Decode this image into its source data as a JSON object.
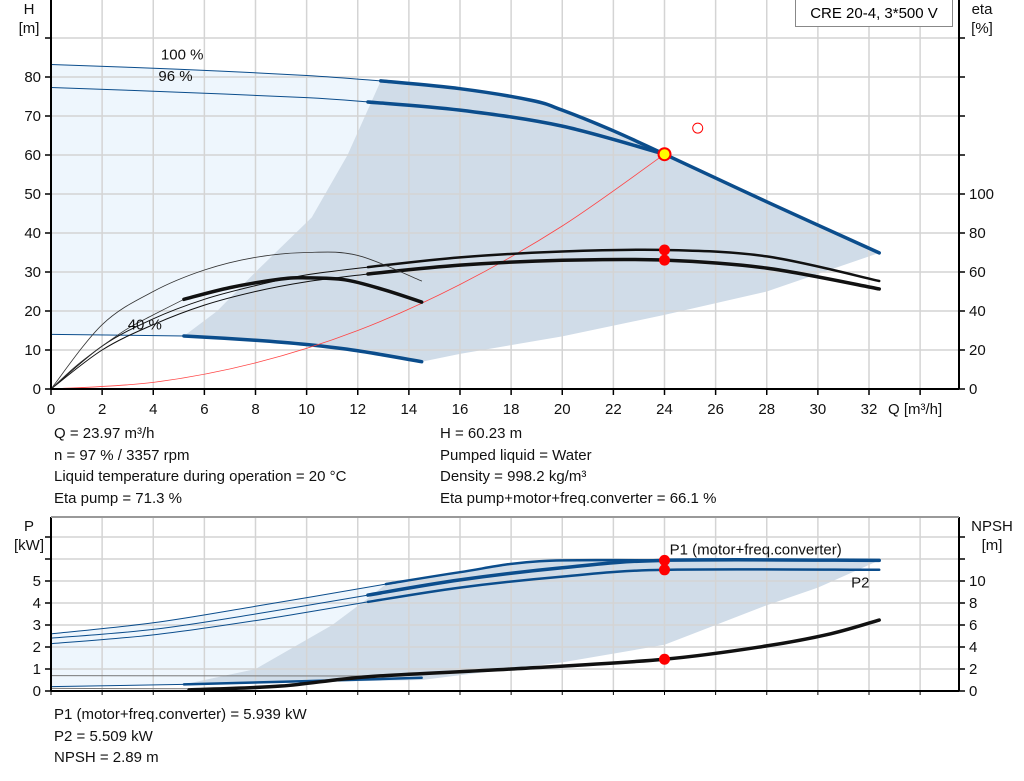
{
  "legend_box": "CRE 20-4, 3*500 V",
  "colors": {
    "curve_blue": "#0b4d8c",
    "light_region": "#eef6fd",
    "dark_region": "#d0dce8",
    "grid": "#d4d4d4",
    "system_curve": "#ff4444",
    "operating_point_fill": "#ffff00",
    "operating_point_marker": "#ff0000",
    "label_blue": "#1a5a96"
  },
  "top_info": {
    "left": [
      "Q = 23.97 m³/h",
      "n = 97 % / 3357 rpm",
      "Liquid temperature during operation = 20 °C",
      "Eta pump = 71.3 %"
    ],
    "right": [
      "H = 60.23 m",
      "Pumped liquid = Water",
      "Density = 998.2 kg/m³",
      "Eta pump+motor+freq.converter = 66.1 %"
    ]
  },
  "bottom_info": [
    "P1 (motor+freq.converter) = 5.939 kW",
    "P2 = 5.509 kW",
    "NPSH = 2.89 m"
  ],
  "chart_data": [
    {
      "type": "line",
      "ylabel": "H\n[m]",
      "y2label": "eta\n[%]",
      "xlabel": "Q [m³/h]",
      "xlim": [
        0,
        35.5
      ],
      "ylim": [
        0,
        100
      ],
      "y2lim": [
        0,
        200
      ],
      "xticks": [
        0,
        2,
        4,
        6,
        8,
        10,
        12,
        14,
        16,
        18,
        20,
        22,
        24,
        26,
        28,
        30,
        32
      ],
      "yticks": [
        0,
        10,
        20,
        30,
        40,
        50,
        60,
        70,
        80
      ],
      "y2ticks": [
        0,
        20,
        40,
        60,
        80,
        100
      ],
      "grid": true,
      "annotations": [
        {
          "text": "100 %",
          "x": 4.3,
          "y": 84.5
        },
        {
          "text": "96 %",
          "x": 4.2,
          "y": 79
        },
        {
          "text": "40 %",
          "x": 3,
          "y": 15.3
        }
      ],
      "regions": [
        {
          "name": "light",
          "axis": "H",
          "points": [
            [
              0,
              83.2
            ],
            [
              5,
              82
            ],
            [
              10,
              80.4
            ],
            [
              12.9,
              79
            ],
            [
              11.6,
              60
            ],
            [
              10.2,
              44
            ],
            [
              8,
              30
            ],
            [
              6.5,
              20
            ],
            [
              5.2,
              13.6
            ],
            [
              0,
              14
            ]
          ]
        },
        {
          "name": "dark",
          "axis": "H",
          "points": [
            [
              5.2,
              13.6
            ],
            [
              6.5,
              20
            ],
            [
              8,
              30
            ],
            [
              10.2,
              44
            ],
            [
              11.6,
              60
            ],
            [
              12.9,
              79
            ],
            [
              16,
              77
            ],
            [
              18.8,
              74
            ],
            [
              20,
              71.5
            ],
            [
              24,
              60.2
            ],
            [
              28,
              48
            ],
            [
              32.4,
              34.9
            ],
            [
              28,
              25
            ],
            [
              24,
              19
            ],
            [
              20,
              13.5
            ],
            [
              16,
              9
            ],
            [
              14.5,
              7
            ],
            [
              12,
              9.8
            ],
            [
              10,
              11.4
            ],
            [
              8,
              12.5
            ]
          ]
        }
      ],
      "series": [
        {
          "axis": "H",
          "weight": "thin",
          "color": "#0b4d8c",
          "points": [
            [
              0,
              83.2
            ],
            [
              5,
              82
            ],
            [
              10,
              80.4
            ],
            [
              12.9,
              79
            ]
          ]
        },
        {
          "axis": "H",
          "weight": "thick",
          "color": "#0b4d8c",
          "points": [
            [
              12.9,
              79
            ],
            [
              16,
              77
            ],
            [
              18.8,
              74
            ],
            [
              20,
              71.5
            ],
            [
              22,
              66.2
            ],
            [
              24,
              60.2
            ],
            [
              28,
              48
            ],
            [
              32.4,
              34.9
            ]
          ]
        },
        {
          "axis": "H",
          "weight": "thin",
          "color": "#0b4d8c",
          "points": [
            [
              0,
              77.3
            ],
            [
              5,
              76.1
            ],
            [
              10,
              74.7
            ],
            [
              12.4,
              73.6
            ]
          ]
        },
        {
          "axis": "H",
          "weight": "thick",
          "color": "#0b4d8c",
          "points": [
            [
              12.4,
              73.6
            ],
            [
              16,
              71.5
            ],
            [
              20,
              67.4
            ],
            [
              24,
              60.2
            ]
          ]
        },
        {
          "axis": "H",
          "weight": "thin",
          "color": "#0b4d8c",
          "points": [
            [
              0,
              14
            ],
            [
              5.2,
              13.6
            ]
          ]
        },
        {
          "axis": "H",
          "weight": "thick",
          "color": "#0b4d8c",
          "points": [
            [
              5.2,
              13.6
            ],
            [
              8,
              12.5
            ],
            [
              10,
              11.4
            ],
            [
              12,
              9.8
            ],
            [
              14.5,
              7
            ]
          ]
        },
        {
          "axis": "H",
          "weight": "hair",
          "color": "#ff4444",
          "points": [
            [
              0,
              0
            ],
            [
              4,
              1.7
            ],
            [
              8,
              6.7
            ],
            [
              12,
              15
            ],
            [
              16,
              26.8
            ],
            [
              20,
              41.8
            ],
            [
              24,
              60.2
            ]
          ]
        },
        {
          "axis": "eta",
          "weight": "thin",
          "color": "#111111",
          "points": [
            [
              0,
              0
            ],
            [
              2,
              22
            ],
            [
              4,
              36
            ],
            [
              6,
              46
            ],
            [
              8,
              53
            ],
            [
              10,
              58.5
            ],
            [
              12.4,
              62.5
            ]
          ]
        },
        {
          "axis": "eta",
          "weight": "medium",
          "color": "#111111",
          "points": [
            [
              12.4,
              62.5
            ],
            [
              16,
              67.5
            ],
            [
              20,
              70.5
            ],
            [
              24,
              71.3
            ],
            [
              28,
              68
            ],
            [
              32.4,
              55.4
            ]
          ]
        },
        {
          "axis": "eta",
          "weight": "thin",
          "color": "#111111",
          "points": [
            [
              0,
              0
            ],
            [
              2,
              20
            ],
            [
              4,
              33
            ],
            [
              6,
              43
            ],
            [
              8,
              50
            ],
            [
              10,
              55
            ],
            [
              12.4,
              59
            ]
          ]
        },
        {
          "axis": "eta",
          "weight": "thick",
          "color": "#111111",
          "points": [
            [
              12.4,
              59
            ],
            [
              16,
              63.5
            ],
            [
              20,
              66
            ],
            [
              24,
              66.1
            ],
            [
              28,
              62
            ],
            [
              32.4,
              51.3
            ]
          ]
        },
        {
          "axis": "eta",
          "weight": "hair",
          "color": "#333333",
          "points": [
            [
              0,
              0
            ],
            [
              2,
              33
            ],
            [
              4,
              50
            ],
            [
              6,
              61
            ],
            [
              8,
              67.5
            ],
            [
              10,
              70
            ],
            [
              12,
              68.5
            ],
            [
              14.5,
              55.4
            ]
          ]
        },
        {
          "axis": "eta",
          "weight": "hair",
          "color": "#333333",
          "points": [
            [
              0,
              0
            ],
            [
              1,
              12
            ],
            [
              2,
              22
            ],
            [
              3,
              31
            ],
            [
              4,
              38
            ],
            [
              5.2,
              46
            ]
          ]
        },
        {
          "axis": "eta",
          "weight": "thick",
          "color": "#111111",
          "points": [
            [
              5.2,
              46
            ],
            [
              7,
              52
            ],
            [
              9,
              56.4
            ],
            [
              10,
              57
            ],
            [
              11.5,
              56
            ],
            [
              13,
              51
            ],
            [
              14.5,
              44.6
            ]
          ]
        }
      ],
      "markers": [
        {
          "axis": "H",
          "x": 24,
          "y": 60.2,
          "kind": "operating-point"
        },
        {
          "axis": "H",
          "x": 25.3,
          "y": 66.9,
          "kind": "hollow"
        },
        {
          "axis": "eta",
          "x": 24,
          "y": 71.3,
          "kind": "dot"
        },
        {
          "axis": "eta",
          "x": 24,
          "y": 66.1,
          "kind": "dot"
        }
      ]
    },
    {
      "type": "line",
      "ylabel": "P\n[kW]",
      "y2label": "NPSH\n[m]",
      "xlim": [
        0,
        35.5
      ],
      "ylim": [
        0,
        7.9
      ],
      "y2lim": [
        0,
        15.8
      ],
      "yticks": [
        0,
        1,
        2,
        3,
        4,
        5
      ],
      "y2ticks": [
        0,
        2,
        4,
        6,
        8,
        10
      ],
      "grid": true,
      "annotations": [
        {
          "text": "P1 (motor+freq.converter)",
          "x": 24.2,
          "y": 6.2
        },
        {
          "text": "P2",
          "x": 31.3,
          "y": 4.7
        }
      ],
      "regions": [
        {
          "name": "light",
          "axis": "P",
          "points": [
            [
              0,
              2.6
            ],
            [
              4,
              3.1
            ],
            [
              8,
              3.85
            ],
            [
              13.1,
              4.86
            ],
            [
              12.5,
              4.3
            ],
            [
              11,
              3
            ],
            [
              9.5,
              2
            ],
            [
              8,
              1
            ],
            [
              5.2,
              0.3
            ],
            [
              0,
              0.15
            ]
          ]
        },
        {
          "name": "dark",
          "axis": "P",
          "points": [
            [
              5.2,
              0.3
            ],
            [
              8,
              1
            ],
            [
              9.5,
              2
            ],
            [
              11,
              3
            ],
            [
              12.5,
              4.3
            ],
            [
              13.1,
              4.86
            ],
            [
              16,
              5.4
            ],
            [
              19.1,
              5.9
            ],
            [
              24,
              5.94
            ],
            [
              32.4,
              5.94
            ],
            [
              30,
              4.7
            ],
            [
              28,
              3.9
            ],
            [
              24,
              2.1
            ],
            [
              20,
              1.3
            ],
            [
              14.5,
              0.5
            ]
          ]
        }
      ],
      "series": [
        {
          "axis": "P",
          "weight": "thin",
          "color": "#0b4d8c",
          "points": [
            [
              0,
              2.6
            ],
            [
              4,
              3.1
            ],
            [
              8,
              3.85
            ],
            [
              13.1,
              4.86
            ]
          ]
        },
        {
          "axis": "P",
          "weight": "medium",
          "color": "#0b4d8c",
          "points": [
            [
              13.1,
              4.86
            ],
            [
              16,
              5.4
            ],
            [
              19.1,
              5.9
            ],
            [
              24,
              5.94
            ],
            [
              32.4,
              5.94
            ]
          ]
        },
        {
          "axis": "P",
          "weight": "thin",
          "color": "#0b4d8c",
          "points": [
            [
              0,
              2.4
            ],
            [
              4,
              2.8
            ],
            [
              8,
              3.5
            ],
            [
              12.4,
              4.36
            ]
          ]
        },
        {
          "axis": "P",
          "weight": "thick",
          "color": "#0b4d8c",
          "points": [
            [
              12.4,
              4.36
            ],
            [
              16,
              5.05
            ],
            [
              20,
              5.6
            ],
            [
              24,
              5.94
            ],
            [
              32.4,
              5.94
            ]
          ]
        },
        {
          "axis": "P",
          "weight": "thin",
          "color": "#0b4d8c",
          "points": [
            [
              0,
              2.15
            ],
            [
              4,
              2.55
            ],
            [
              8,
              3.2
            ],
            [
              12.4,
              4.05
            ]
          ]
        },
        {
          "axis": "P",
          "weight": "medium",
          "color": "#0b4d8c",
          "points": [
            [
              12.4,
              4.05
            ],
            [
              16,
              4.7
            ],
            [
              20,
              5.2
            ],
            [
              24,
              5.51
            ],
            [
              32.4,
              5.51
            ]
          ]
        },
        {
          "axis": "P",
          "weight": "thin",
          "color": "#777777",
          "points": [
            [
              0,
              0.7
            ],
            [
              12.4,
              0.68
            ]
          ]
        },
        {
          "axis": "P",
          "weight": "thin",
          "color": "#0b4d8c",
          "points": [
            [
              0,
              0.2
            ],
            [
              5.2,
              0.3
            ]
          ]
        },
        {
          "axis": "P",
          "weight": "medium",
          "color": "#0b4d8c",
          "points": [
            [
              5.2,
              0.3
            ],
            [
              10,
              0.45
            ],
            [
              14.5,
              0.6
            ]
          ]
        },
        {
          "axis": "P",
          "weight": "thin",
          "color": "#777777",
          "points": [
            [
              0,
              0.12
            ],
            [
              5.4,
              0.1
            ]
          ]
        },
        {
          "axis": "NPSH",
          "weight": "thick",
          "color": "#111111",
          "points": [
            [
              5.4,
              0.1
            ],
            [
              9,
              0.45
            ],
            [
              12.4,
              1.3
            ],
            [
              18,
              2
            ],
            [
              24,
              2.89
            ],
            [
              28,
              4.1
            ],
            [
              30.5,
              5.2
            ],
            [
              32.4,
              6.45
            ]
          ]
        }
      ],
      "markers": [
        {
          "axis": "P",
          "x": 24,
          "y": 5.939,
          "kind": "dot"
        },
        {
          "axis": "P",
          "x": 24,
          "y": 5.509,
          "kind": "dot"
        },
        {
          "axis": "NPSH",
          "x": 24,
          "y": 2.89,
          "kind": "dot"
        }
      ]
    }
  ]
}
